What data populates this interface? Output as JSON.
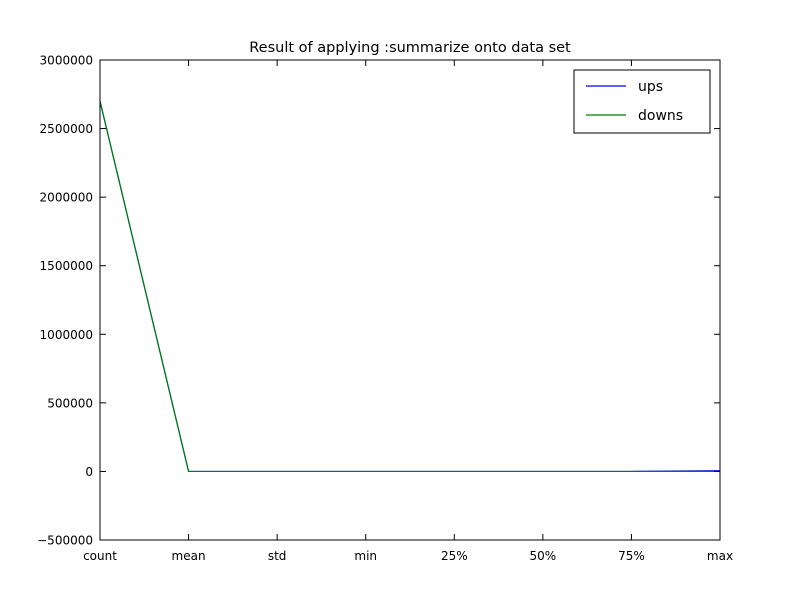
{
  "chart_data": {
    "type": "line",
    "title": "Result of applying :summarize onto data set",
    "xlabel": "",
    "ylabel": "",
    "categories": [
      "count",
      "mean",
      "std",
      "min",
      "25%",
      "50%",
      "75%",
      "max"
    ],
    "ylim": [
      -500000,
      3000000
    ],
    "yticks": [
      -500000,
      0,
      500000,
      1000000,
      1500000,
      2000000,
      2500000,
      3000000
    ],
    "ytick_labels": [
      "−500000",
      "0",
      "500000",
      "1000000",
      "1500000",
      "2000000",
      "2500000",
      "3000000"
    ],
    "grid": false,
    "legend_position": "top-right",
    "series": [
      {
        "name": "ups",
        "color": "#0000ff",
        "values": [
          2700000,
          0,
          0,
          0,
          0,
          0,
          0,
          5000
        ]
      },
      {
        "name": "downs",
        "color": "#008000",
        "values": [
          2700000,
          0,
          0,
          0,
          0,
          0,
          0,
          0
        ]
      }
    ]
  }
}
